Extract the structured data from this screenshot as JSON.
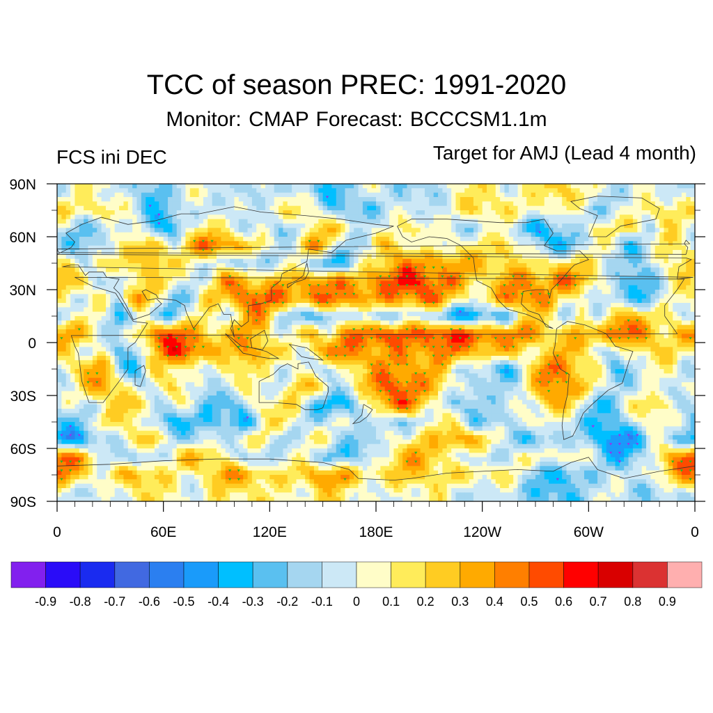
{
  "header": {
    "title": "TCC of season PREC: 1991-2020",
    "subtitle": "Monitor: CMAP   Forecast: BCCCSM1.1m",
    "left_label": "FCS ini DEC",
    "right_label": "Target for AMJ (Lead 4 month)"
  },
  "chart_data": {
    "type": "heatmap",
    "title": "TCC of season PREC: 1991-2020",
    "subtitle": "Monitor: CMAP   Forecast: BCCCSM1.1m",
    "variable": "Temporal correlation coefficient of seasonal precipitation",
    "grid": "approximate 10-degree cells, rows 90N->90S, columns 0E eastward",
    "lon_range": [
      0,
      360
    ],
    "lat_range": [
      -90,
      90
    ],
    "x_ticks": [
      {
        "lon": 0,
        "label": "0"
      },
      {
        "lon": 60,
        "label": "60E"
      },
      {
        "lon": 120,
        "label": "120E"
      },
      {
        "lon": 180,
        "label": "180E"
      },
      {
        "lon": 240,
        "label": "120W"
      },
      {
        "lon": 300,
        "label": "60W"
      },
      {
        "lon": 360,
        "label": "0"
      }
    ],
    "y_ticks": [
      {
        "lat": 90,
        "label": "90N"
      },
      {
        "lat": 60,
        "label": "60N"
      },
      {
        "lat": 30,
        "label": "30N"
      },
      {
        "lat": 0,
        "label": "0"
      },
      {
        "lat": -30,
        "label": "30S"
      },
      {
        "lat": -60,
        "label": "60S"
      },
      {
        "lat": -90,
        "label": "90S"
      }
    ],
    "x_minor_step_deg": 10,
    "y_minor_step_deg": 15,
    "significance_markers": {
      "positive_color": "#22bb22",
      "negative_color": "#9933ee",
      "threshold": 0.36
    },
    "values": [
      [
        0.05,
        0.05,
        0.0,
        -0.1,
        -0.15,
        -0.15,
        -0.1,
        -0.1,
        -0.05,
        0.0,
        -0.05,
        -0.1,
        -0.1,
        -0.15,
        -0.2,
        -0.2,
        -0.15,
        -0.1,
        -0.1,
        -0.15,
        -0.1,
        -0.05,
        0.0,
        0.05,
        0.1,
        0.1,
        0.1,
        0.15,
        0.15,
        0.1,
        0.05,
        0.0,
        -0.1,
        -0.1,
        -0.05,
        0.0
      ],
      [
        0.25,
        0.2,
        0.1,
        0.0,
        -0.1,
        -0.2,
        -0.2,
        -0.1,
        -0.15,
        -0.05,
        0.0,
        0.1,
        0.05,
        0.05,
        0.1,
        -0.1,
        -0.2,
        -0.3,
        -0.2,
        -0.1,
        0.0,
        0.05,
        0.05,
        0.1,
        0.15,
        0.2,
        0.15,
        0.1,
        0.0,
        -0.1,
        -0.1,
        0.0,
        0.05,
        0.1,
        0.1,
        0.15
      ],
      [
        0.05,
        -0.15,
        -0.2,
        -0.2,
        0.1,
        -0.35,
        -0.25,
        0.05,
        0.1,
        -0.05,
        0.0,
        0.1,
        -0.2,
        -0.2,
        0.15,
        0.25,
        0.2,
        0.0,
        -0.1,
        0.0,
        0.2,
        0.1,
        -0.1,
        -0.2,
        -0.1,
        0.0,
        -0.2,
        -0.3,
        -0.3,
        -0.15,
        0.1,
        0.2,
        0.3,
        -0.1,
        0.0,
        0.05
      ],
      [
        -0.2,
        -0.15,
        -0.1,
        0.1,
        0.1,
        0.25,
        0.1,
        0.4,
        0.45,
        0.3,
        0.35,
        0.2,
        -0.1,
        0.05,
        0.3,
        0.1,
        -0.1,
        0.0,
        0.25,
        0.1,
        -0.1,
        0.1,
        0.2,
        0.15,
        0.0,
        0.2,
        0.1,
        -0.2,
        -0.4,
        -0.2,
        0.0,
        0.05,
        -0.2,
        -0.1,
        0.2,
        0.0
      ],
      [
        0.1,
        -0.1,
        0.3,
        0.2,
        -0.05,
        0.35,
        0.3,
        0.1,
        -0.1,
        -0.1,
        -0.35,
        -0.1,
        0.1,
        0.0,
        -0.3,
        -0.4,
        -0.2,
        0.2,
        0.3,
        0.3,
        0.35,
        0.4,
        0.45,
        0.3,
        0.2,
        0.1,
        0.15,
        0.2,
        0.3,
        0.1,
        0.0,
        -0.1,
        -0.2,
        0.0,
        0.1,
        0.1
      ],
      [
        0.2,
        0.3,
        0.0,
        -0.2,
        0.1,
        0.2,
        0.1,
        0.0,
        0.1,
        0.35,
        0.3,
        0.2,
        0.45,
        0.3,
        0.4,
        0.3,
        0.35,
        0.5,
        0.55,
        0.6,
        0.5,
        0.45,
        0.5,
        0.3,
        0.1,
        0.3,
        0.35,
        0.4,
        0.6,
        0.4,
        0.0,
        -0.2,
        -0.3,
        -0.1,
        0.0,
        0.1
      ],
      [
        0.1,
        -0.1,
        0.2,
        0.0,
        0.5,
        0.0,
        -0.3,
        0.0,
        0.3,
        0.2,
        0.4,
        0.5,
        0.55,
        0.5,
        0.45,
        0.4,
        0.4,
        0.45,
        0.5,
        0.4,
        0.45,
        0.4,
        0.2,
        0.15,
        0.2,
        0.4,
        0.4,
        0.45,
        0.2,
        0.1,
        -0.1,
        -0.3,
        -0.2,
        -0.2,
        0.1,
        0.0
      ],
      [
        -0.2,
        0.0,
        0.1,
        -0.2,
        -0.1,
        -0.3,
        -0.3,
        0.1,
        0.2,
        -0.1,
        0.2,
        0.3,
        0.1,
        -0.2,
        -0.3,
        -0.2,
        -0.1,
        -0.2,
        -0.1,
        0.0,
        -0.2,
        -0.3,
        -0.4,
        -0.4,
        -0.2,
        -0.3,
        0.1,
        0.2,
        -0.1,
        0.3,
        -0.4,
        0.3,
        0.3,
        0.2,
        0.2,
        0.0
      ],
      [
        0.3,
        0.2,
        0.0,
        -0.1,
        0.2,
        0.45,
        0.5,
        0.4,
        0.3,
        0.35,
        0.3,
        0.2,
        -0.1,
        0.2,
        0.4,
        0.1,
        0.3,
        0.55,
        0.65,
        0.6,
        0.5,
        0.55,
        0.55,
        0.6,
        0.55,
        0.5,
        0.3,
        0.2,
        0.3,
        0.35,
        0.4,
        0.5,
        0.45,
        0.3,
        0.3,
        0.4
      ],
      [
        0.2,
        -0.1,
        0.0,
        -0.2,
        0.0,
        0.3,
        0.5,
        0.55,
        0.45,
        0.3,
        0.4,
        0.3,
        0.1,
        0.0,
        0.3,
        0.5,
        0.4,
        0.3,
        0.35,
        0.5,
        0.45,
        0.3,
        0.4,
        0.3,
        0.45,
        0.3,
        0.1,
        0.0,
        0.3,
        0.35,
        0.1,
        -0.2,
        0.0,
        0.2,
        0.3,
        0.1
      ],
      [
        0.1,
        0.2,
        0.3,
        -0.1,
        -0.2,
        0.2,
        0.1,
        0.0,
        -0.1,
        0.2,
        0.3,
        0.0,
        -0.2,
        0.1,
        0.0,
        -0.1,
        0.2,
        0.1,
        0.4,
        0.5,
        0.4,
        0.3,
        -0.2,
        0.0,
        -0.2,
        -0.3,
        0.1,
        0.4,
        0.35,
        0.3,
        0.2,
        -0.3,
        -0.2,
        0.0,
        0.1,
        0.0
      ],
      [
        0.0,
        0.1,
        0.4,
        0.2,
        -0.1,
        0.1,
        0.3,
        -0.2,
        -0.2,
        0.1,
        0.2,
        0.0,
        -0.2,
        0.2,
        0.3,
        0.1,
        -0.1,
        0.2,
        0.5,
        0.55,
        0.5,
        0.3,
        0.0,
        -0.3,
        -0.1,
        0.0,
        0.1,
        0.3,
        0.4,
        0.3,
        0.1,
        0.0,
        -0.2,
        -0.2,
        0.0,
        0.1
      ],
      [
        0.1,
        0.0,
        -0.1,
        0.2,
        0.3,
        0.1,
        -0.1,
        0.0,
        -0.3,
        -0.3,
        -0.1,
        0.2,
        0.1,
        0.0,
        -0.2,
        -0.3,
        -0.3,
        0.0,
        0.3,
        0.5,
        0.4,
        0.1,
        -0.3,
        -0.3,
        -0.1,
        0.0,
        0.0,
        0.2,
        0.3,
        -0.1,
        -0.2,
        -0.1,
        0.1,
        0.2,
        0.0,
        -0.2
      ],
      [
        -0.2,
        -0.1,
        0.1,
        0.0,
        0.2,
        -0.1,
        -0.3,
        -0.3,
        -0.4,
        -0.3,
        -0.3,
        0.1,
        0.2,
        -0.1,
        -0.2,
        0.0,
        0.1,
        0.0,
        -0.3,
        -0.3,
        0.0,
        0.2,
        0.1,
        -0.3,
        -0.3,
        -0.1,
        0.2,
        0.1,
        -0.2,
        -0.2,
        -0.3,
        -0.2,
        0.0,
        0.1,
        -0.1,
        -0.1
      ],
      [
        -0.4,
        -0.3,
        -0.2,
        -0.1,
        0.1,
        0.3,
        0.0,
        -0.1,
        -0.2,
        -0.1,
        0.1,
        0.3,
        -0.2,
        -0.1,
        0.0,
        0.1,
        -0.1,
        -0.2,
        -0.1,
        0.0,
        0.2,
        0.3,
        0.5,
        0.3,
        0.0,
        -0.1,
        -0.2,
        -0.2,
        -0.1,
        -0.2,
        -0.4,
        -0.45,
        -0.35,
        -0.1,
        -0.2,
        -0.3
      ],
      [
        0.55,
        0.4,
        0.1,
        -0.2,
        -0.3,
        -0.1,
        0.2,
        0.4,
        0.2,
        0.0,
        -0.2,
        -0.1,
        0.1,
        0.0,
        -0.2,
        -0.3,
        -0.2,
        -0.1,
        0.1,
        0.2,
        0.3,
        0.3,
        0.1,
        -0.1,
        -0.2,
        -0.1,
        0.1,
        0.2,
        0.1,
        0.0,
        -0.2,
        -0.3,
        -0.2,
        0.0,
        0.3,
        0.5
      ],
      [
        0.4,
        0.3,
        0.1,
        0.2,
        0.25,
        0.2,
        0.15,
        0.1,
        0.2,
        0.3,
        0.3,
        0.3,
        0.25,
        0.2,
        0.3,
        0.35,
        0.35,
        0.3,
        0.2,
        0.2,
        0.15,
        0.2,
        0.25,
        0.2,
        0.1,
        0.0,
        -0.1,
        -0.2,
        -0.3,
        -0.3,
        -0.2,
        -0.1,
        0.0,
        0.1,
        0.2,
        0.3
      ],
      [
        -0.1,
        -0.05,
        0.0,
        0.05,
        0.1,
        0.05,
        0.05,
        0.1,
        0.1,
        0.1,
        0.05,
        0.1,
        0.15,
        0.1,
        0.1,
        0.1,
        0.1,
        0.05,
        0.05,
        0.0,
        0.0,
        0.05,
        0.05,
        0.0,
        -0.1,
        -0.15,
        -0.2,
        -0.25,
        -0.2,
        -0.15,
        -0.1,
        -0.1,
        -0.1,
        -0.05,
        -0.1,
        -0.1
      ]
    ]
  },
  "colorbar": {
    "levels": [
      "-0.9",
      "-0.8",
      "-0.7",
      "-0.6",
      "-0.5",
      "-0.4",
      "-0.3",
      "-0.2",
      "-0.1",
      "0",
      "0.1",
      "0.2",
      "0.3",
      "0.4",
      "0.5",
      "0.6",
      "0.7",
      "0.8",
      "0.9"
    ],
    "colors": [
      "#8220ee",
      "#2a0cf8",
      "#1a2bf0",
      "#4169e1",
      "#2b7ff0",
      "#1a9bfa",
      "#00bfff",
      "#5ac0f0",
      "#a5d6f0",
      "#cce8f6",
      "#fffdc8",
      "#ffec5a",
      "#ffcc22",
      "#ffaa00",
      "#ff7f00",
      "#ff4b00",
      "#ff0000",
      "#d90000",
      "#db3232",
      "#ffafaf"
    ]
  },
  "map_frame_color": "#000000",
  "coastline_color": "#333333"
}
